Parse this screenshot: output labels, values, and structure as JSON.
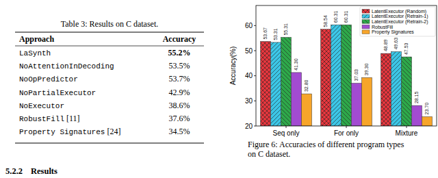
{
  "table": {
    "caption": "Table 3: Results on C dataset.",
    "columns": [
      "Approach",
      "Accuracy"
    ],
    "rows": [
      {
        "approach": "LaSynth",
        "accuracy": "55.2%"
      },
      {
        "approach": "NoAttentionInDecoding",
        "accuracy": "53.5%"
      },
      {
        "approach": "NoOpPredictor",
        "accuracy": "53.7%"
      },
      {
        "approach": "NoPartialExecutor",
        "accuracy": "42.9%"
      },
      {
        "approach": "NoExecutor",
        "accuracy": "38.6%"
      },
      {
        "approach": "RobustFill",
        "ref": "[11]",
        "accuracy": "37.6%"
      },
      {
        "approach": "Property Signatures",
        "ref": "[24]",
        "accuracy": "34.5%"
      }
    ]
  },
  "figure": {
    "caption": [
      "Figure 6: Accuracies of different program types",
      "on C dataset."
    ]
  },
  "section": {
    "number": "5.2.2",
    "title": "Results"
  },
  "chart_data": {
    "type": "bar",
    "ylabel": "Accuracy(%)",
    "categories": [
      "Seq only",
      "For only",
      "Mixture"
    ],
    "series": [
      {
        "name": "LatentExecutor (Random)",
        "color": "#e8373e",
        "values": [
          53.67,
          58.54,
          48.89
        ]
      },
      {
        "name": "LatentExecutor (Retrain-1)",
        "color": "#3cc6e6",
        "values": [
          53.31,
          60.31,
          49.63
        ]
      },
      {
        "name": "LatentExecutor (Retrain-2)",
        "color": "#2ea84a",
        "values": [
          55.31,
          60.31,
          47.53
        ]
      },
      {
        "name": "RobustFill",
        "color": "#a24bd1",
        "values": [
          41.3,
          37.03,
          28.15
        ],
        "value_labels": [
          "41.30",
          "37.03",
          "28.15"
        ]
      },
      {
        "name": "Property Signatures",
        "color": "#f7a52a",
        "values": [
          32.8,
          39.3,
          23.7
        ],
        "value_labels": [
          "32.80",
          "39.30",
          "23.70"
        ]
      }
    ],
    "ylim": [
      20,
      68
    ],
    "yticks": [
      20,
      30,
      40,
      50,
      60
    ],
    "data_labels": true,
    "legend": "upper right",
    "grid": false
  }
}
